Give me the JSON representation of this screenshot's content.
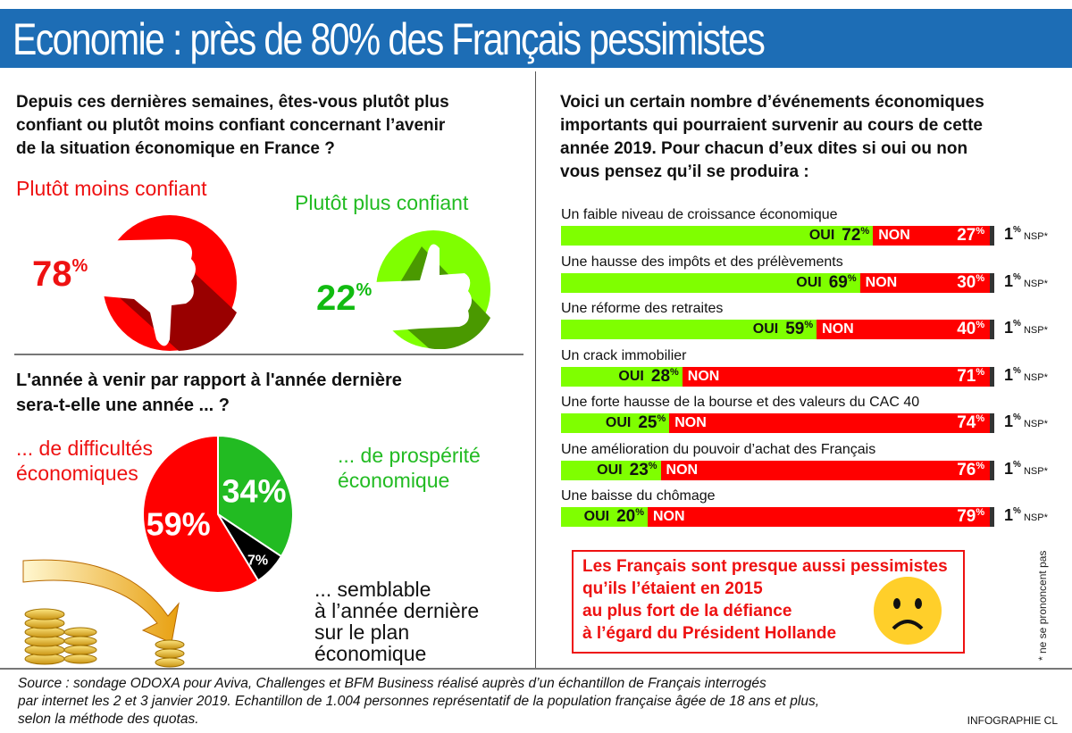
{
  "title": "Economie : près de 80% des Français pessimistes",
  "q1": {
    "question": [
      "Depuis ces dernières semaines, êtes-vous plutôt plus",
      "confiant ou plutôt moins confiant concernant l’avenir",
      "de la situation économique en France ?"
    ],
    "less_label": "Plutôt moins confiant",
    "less_value": "78",
    "more_label": "Plutôt plus confiant",
    "more_value": "22",
    "pct": "%"
  },
  "q2": {
    "question": [
      "L'année à venir par rapport à l'année dernière",
      "sera-t-elle une année ... ?"
    ],
    "labels": {
      "difficult": [
        "... de difficultés",
        "économiques"
      ],
      "prosperity": [
        "... de prospérité",
        "économique"
      ],
      "similar": [
        "... semblable",
        "à l’année dernière",
        "sur le plan",
        "économique"
      ]
    }
  },
  "q3": {
    "question": [
      "Voici un certain nombre d’événements économiques",
      "importants qui pourraient survenir au cours de cette",
      "année 2019. Pour chacun d’eux dites si oui ou non",
      "vous pensez qu’il se produira :"
    ],
    "oui_label": "OUI",
    "non_label": "NON",
    "nsp_label": "NSP*"
  },
  "callout": [
    "Les Français sont presque aussi pessimistes",
    "qu’ils l’étaient en 2015",
    "au plus fort de la défiance",
    "à l’égard du Président Hollande"
  ],
  "footnote": "* ne se prononcent pas",
  "source": [
    "Source : sondage ODOXA pour Aviva, Challenges et BFM Business réalisé auprès d’un échantillon de Français interrogés",
    "par internet les 2 et 3 janvier 2019. Echantillon de 1.004 personnes représentatif de la population française  âgée de 18 ans et plus,",
    "selon la méthode des quotas."
  ],
  "credit": "INFOGRAPHIE CL",
  "colors": {
    "red": "#ff0000",
    "green": "#22bb22",
    "lime": "#7fff00",
    "blue": "#1d6db5"
  },
  "chart_data": [
    {
      "type": "pie",
      "title": "Depuis ces dernières semaines, êtes-vous plutôt plus confiant ou plutôt moins confiant concernant l’avenir de la situation économique en France ?",
      "categories": [
        "Plutôt moins confiant",
        "Plutôt plus confiant"
      ],
      "values": [
        78,
        22
      ]
    },
    {
      "type": "pie",
      "title": "L'année à venir par rapport à l'année dernière sera-t-elle une année ... ?",
      "categories": [
        "de prospérité économique",
        "semblable à l’année dernière sur le plan économique",
        "de difficultés économiques"
      ],
      "values": [
        34,
        7,
        59
      ],
      "colors": [
        "#22bb22",
        "#000000",
        "#ff0000"
      ]
    },
    {
      "type": "bar",
      "stacked": true,
      "orientation": "horizontal",
      "title": "Événements économiques 2019",
      "categories": [
        "Un faible niveau de croissance économique",
        "Une hausse des impôts et des prélèvements",
        "Une réforme des retraites",
        "Un crack immobilier",
        "Une forte hausse de la bourse et des valeurs du CAC 40",
        "Une amélioration du pouvoir d’achat des Français",
        "Une baisse du chômage"
      ],
      "series": [
        {
          "name": "OUI",
          "values": [
            72,
            69,
            59,
            28,
            25,
            23,
            20
          ]
        },
        {
          "name": "NON",
          "values": [
            27,
            30,
            40,
            71,
            74,
            76,
            79
          ]
        },
        {
          "name": "NSP",
          "values": [
            1,
            1,
            1,
            1,
            1,
            1,
            1
          ]
        }
      ],
      "xlim": [
        0,
        100
      ]
    }
  ]
}
